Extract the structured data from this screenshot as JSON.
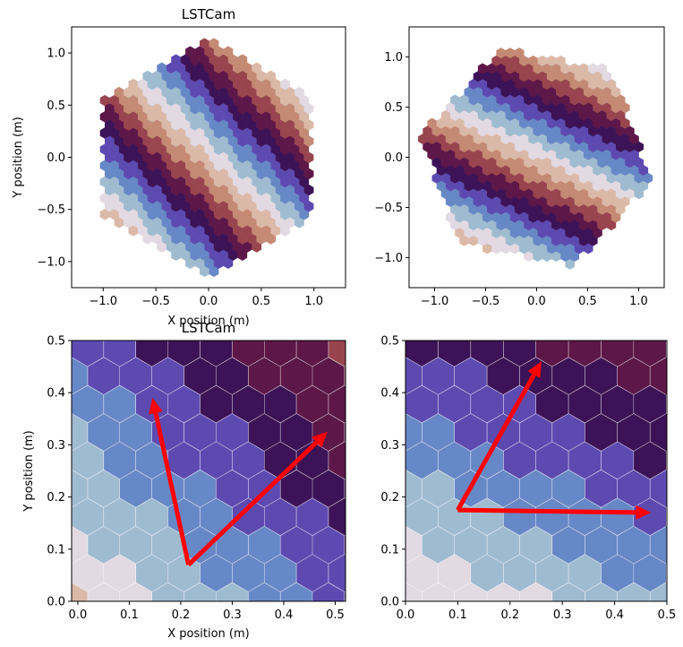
{
  "chart_data": [
    {
      "type": "heatmap",
      "title": "LSTCam",
      "xlabel": "X position (m)",
      "ylabel": "Y position (m)",
      "xlim": [
        -1.3,
        1.3
      ],
      "ylim": [
        -1.25,
        1.25
      ],
      "xticks": [
        -1.0,
        -0.5,
        0.0,
        0.5,
        1.0
      ],
      "xtick_labels": [
        "−1.0",
        "−0.5",
        "0.0",
        "0.5",
        "1.0"
      ],
      "yticks": [
        -1.0,
        -0.5,
        0.0,
        0.5,
        1.0
      ],
      "ytick_labels": [
        "−1.0",
        "−0.5",
        "0.0",
        "0.5",
        "1.0"
      ],
      "camera": {
        "shape": "hexagon",
        "radius_m": 1.15,
        "rotation_deg": 0
      },
      "pattern": {
        "kind": "stripes",
        "direction_deg": 45,
        "stripe_period_m": 1.0
      },
      "colormap": "twilight_shifted",
      "grid": false
    },
    {
      "type": "heatmap",
      "title": "",
      "xlabel": "",
      "ylabel": "",
      "xlim": [
        -1.25,
        1.25
      ],
      "ylim": [
        -1.3,
        1.3
      ],
      "xticks": [
        -1.0,
        -0.5,
        0.0,
        0.5,
        1.0
      ],
      "xtick_labels": [
        "−1.0",
        "−0.5",
        "0.0",
        "0.5",
        "1.0"
      ],
      "yticks": [
        -1.0,
        -0.5,
        0.0,
        0.5,
        1.0
      ],
      "ytick_labels": [
        "−1.0",
        "−0.5",
        "0.0",
        "0.5",
        "1.0"
      ],
      "camera": {
        "shape": "hexagon",
        "radius_m": 1.15,
        "rotation_deg": 19
      },
      "pattern": {
        "kind": "stripes",
        "direction_deg": 64,
        "stripe_period_m": 1.0
      },
      "colormap": "twilight_shifted",
      "grid": false
    },
    {
      "type": "heatmap",
      "title": "LSTCam",
      "xlabel": "X position (m)",
      "ylabel": "Y position (m)",
      "xlim": [
        -0.012,
        0.52
      ],
      "ylim": [
        0.0,
        0.5
      ],
      "xticks": [
        0.0,
        0.1,
        0.2,
        0.3,
        0.4,
        0.5
      ],
      "xtick_labels": [
        "0.0",
        "0.1",
        "0.2",
        "0.3",
        "0.4",
        "0.5"
      ],
      "yticks": [
        0.0,
        0.1,
        0.2,
        0.3,
        0.4,
        0.5
      ],
      "ytick_labels": [
        "0.0",
        "0.1",
        "0.2",
        "0.3",
        "0.4",
        "0.5"
      ],
      "pattern": {
        "kind": "stripes",
        "direction_deg": 45,
        "stripe_period_m": 1.0
      },
      "colormap": "twilight_shifted",
      "arrows": [
        {
          "from": [
            0.215,
            0.07
          ],
          "to": [
            0.145,
            0.39
          ]
        },
        {
          "from": [
            0.215,
            0.07
          ],
          "to": [
            0.485,
            0.325
          ]
        }
      ],
      "arrow_color": "#ff0000",
      "grid": false
    },
    {
      "type": "heatmap",
      "title": "",
      "xlabel": "",
      "ylabel": "",
      "xlim": [
        0.0,
        0.5
      ],
      "ylim": [
        0.0,
        0.5
      ],
      "xticks": [
        0.0,
        0.1,
        0.2,
        0.3,
        0.4,
        0.5
      ],
      "xtick_labels": [
        "0.0",
        "0.1",
        "0.2",
        "0.3",
        "0.4",
        "0.5"
      ],
      "yticks": [
        0.0,
        0.1,
        0.2,
        0.3,
        0.4,
        0.5
      ],
      "ytick_labels": [
        "0.0",
        "0.1",
        "0.2",
        "0.3",
        "0.4",
        "0.5"
      ],
      "pattern": {
        "kind": "stripes",
        "direction_deg": 64,
        "stripe_period_m": 1.0
      },
      "colormap": "twilight_shifted",
      "arrows": [
        {
          "from": [
            0.1,
            0.175
          ],
          "to": [
            0.26,
            0.46
          ]
        },
        {
          "from": [
            0.1,
            0.175
          ],
          "to": [
            0.47,
            0.17
          ]
        }
      ],
      "arrow_color": "#ff0000",
      "grid": false
    }
  ]
}
